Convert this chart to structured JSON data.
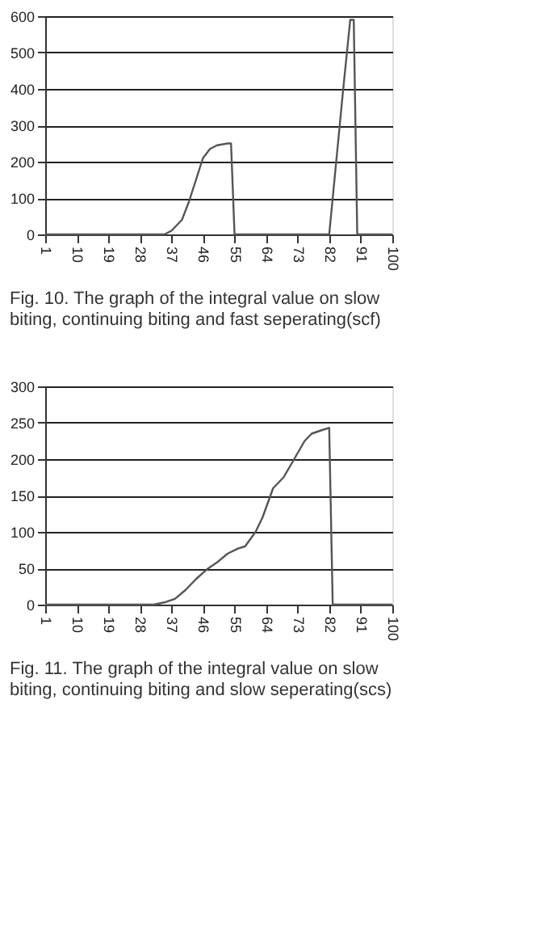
{
  "chart_data": [
    {
      "type": "line",
      "x": [
        1,
        35,
        37,
        40,
        42,
        44,
        46,
        48,
        50,
        53,
        54,
        55,
        82,
        84,
        86,
        88,
        89,
        90,
        100
      ],
      "series": [
        {
          "color": "#555555",
          "values": [
            0,
            0,
            10,
            40,
            90,
            150,
            210,
            235,
            245,
            250,
            250,
            0,
            0,
            200,
            400,
            590,
            590,
            0,
            0
          ]
        }
      ],
      "xlim": [
        1,
        100
      ],
      "xticks": [
        1,
        10,
        19,
        28,
        37,
        46,
        55,
        64,
        73,
        82,
        91,
        100
      ],
      "ylim": [
        0,
        600
      ],
      "yticks": [
        0,
        100,
        200,
        300,
        400,
        500,
        600
      ],
      "grid": "y",
      "marker": "none",
      "line_style": "solid",
      "annotations": [
        "Fig. 10. The graph of the integral value on slow biting, continuing biting and fast seperating(scf)"
      ]
    },
    {
      "type": "line",
      "x": [
        1,
        32,
        35,
        38,
        41,
        44,
        47,
        50,
        53,
        56,
        58,
        61,
        63,
        66,
        69,
        72,
        75,
        77,
        80,
        82,
        83,
        100
      ],
      "series": [
        {
          "color": "#555555",
          "values": [
            0,
            0,
            3,
            8,
            20,
            35,
            48,
            58,
            70,
            77,
            80,
            100,
            120,
            160,
            175,
            200,
            225,
            235,
            240,
            243,
            0,
            0
          ]
        }
      ],
      "xlim": [
        1,
        100
      ],
      "xticks": [
        1,
        10,
        19,
        28,
        37,
        46,
        55,
        64,
        73,
        82,
        91,
        100
      ],
      "ylim": [
        0,
        300
      ],
      "yticks": [
        0,
        50,
        100,
        150,
        200,
        250,
        300
      ],
      "grid": "y",
      "marker": "none",
      "line_style": "solid",
      "annotations": [
        "Fig. 11. The graph of the integral value on slow biting, continuing biting and slow seperating(scs)"
      ]
    }
  ]
}
